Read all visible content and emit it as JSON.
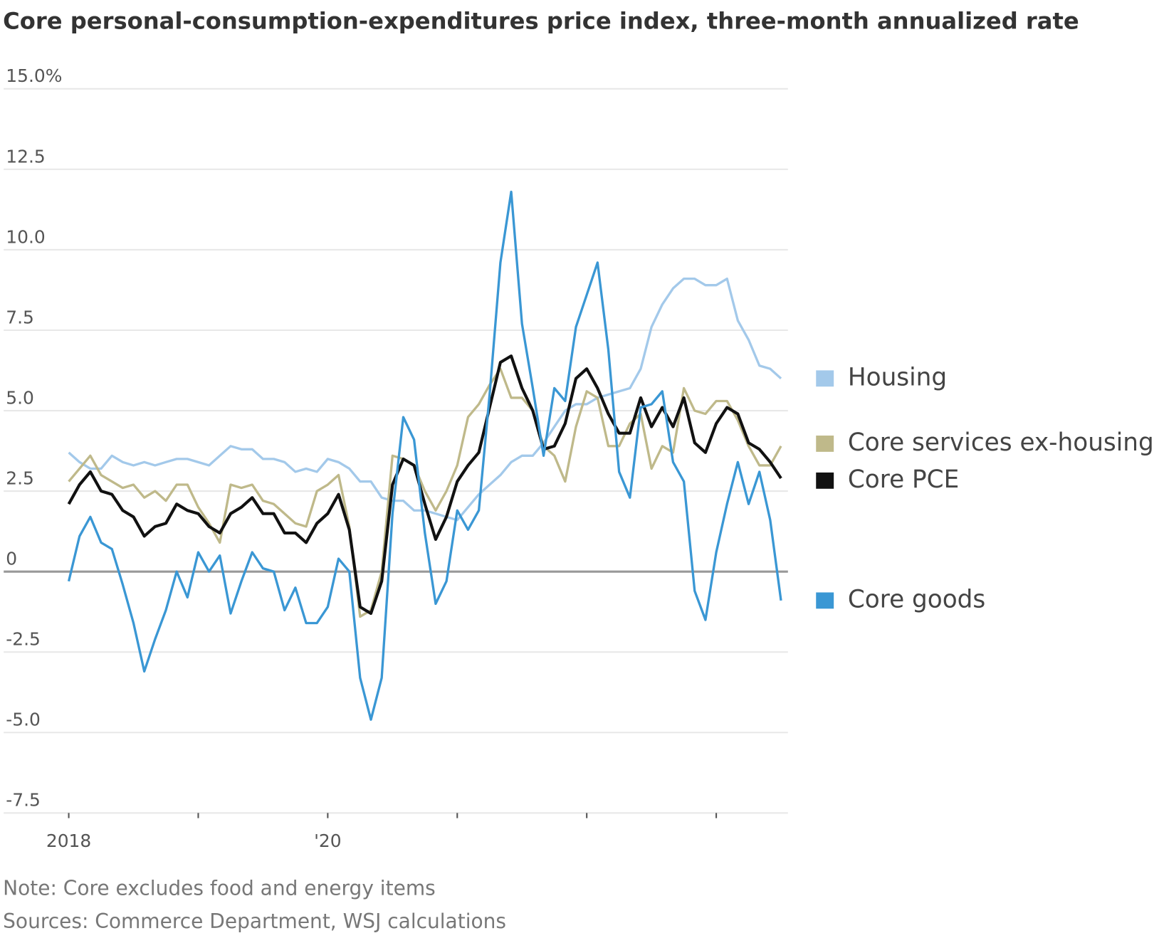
{
  "chart_data": {
    "type": "line",
    "title": "Core personal-consumption-expenditures price index, three-month annualized rate",
    "note": "Note: Core excludes food and energy items",
    "source": "Sources: Commerce Department, WSJ calculations",
    "categories": [
      "2018",
      null,
      null,
      null,
      null,
      null,
      null,
      null,
      null,
      null,
      null,
      null,
      null,
      null,
      null,
      null,
      null,
      null,
      null,
      null,
      null,
      null,
      null,
      null,
      "'20",
      null,
      null,
      null,
      null,
      null,
      null,
      null,
      null,
      null,
      null,
      null,
      null,
      null,
      null,
      null,
      null,
      null,
      null,
      null,
      null,
      null,
      null,
      null,
      null,
      null,
      null,
      null,
      null,
      null,
      null,
      null,
      null,
      null,
      null,
      null,
      null,
      null,
      null,
      null,
      null,
      null,
      null
    ],
    "ylim": [
      -7.5,
      15
    ],
    "yticks": [
      {
        "value": 15,
        "label": "15.0%"
      },
      12.5,
      {
        "value": 10,
        "label": "10.0"
      },
      7.5,
      {
        "value": 5,
        "label": "5.0"
      },
      2.5,
      0,
      -2.5,
      {
        "value": -5,
        "label": "-5.0"
      },
      -7.5
    ],
    "grid": true,
    "legend": "right",
    "series": [
      {
        "name": "Housing",
        "color": "#a3c9ea",
        "values": [
          3.7,
          3.4,
          3.2,
          3.2,
          3.6,
          3.4,
          3.3,
          3.4,
          3.3,
          3.4,
          3.5,
          3.5,
          3.4,
          3.3,
          3.6,
          3.9,
          3.8,
          3.8,
          3.5,
          3.5,
          3.4,
          3.1,
          3.2,
          3.1,
          3.5,
          3.4,
          3.2,
          2.8,
          2.8,
          2.3,
          2.2,
          2.2,
          1.9,
          1.9,
          1.8,
          1.7,
          1.6,
          2.0,
          2.4,
          2.7,
          3.0,
          3.4,
          3.6,
          3.6,
          4.0,
          4.5,
          5.0,
          5.2,
          5.2,
          5.4,
          5.5,
          5.6,
          5.7,
          6.3,
          7.6,
          8.3,
          8.8,
          9.1,
          9.1,
          8.9,
          8.9,
          9.1,
          7.8,
          7.2,
          6.4,
          6.3,
          6.0
        ]
      },
      {
        "name": "Core services ex-housing",
        "color": "#bfb98a",
        "values": [
          2.8,
          3.2,
          3.6,
          3.0,
          2.8,
          2.6,
          2.7,
          2.3,
          2.5,
          2.2,
          2.7,
          2.7,
          2.0,
          1.5,
          0.9,
          2.7,
          2.6,
          2.7,
          2.2,
          2.1,
          1.8,
          1.5,
          1.4,
          2.5,
          2.7,
          3.0,
          1.4,
          -1.4,
          -1.2,
          0.0,
          3.6,
          3.5,
          3.3,
          2.5,
          1.9,
          2.5,
          3.3,
          4.8,
          5.2,
          5.8,
          6.3,
          5.4,
          5.4,
          5.0,
          3.9,
          3.6,
          2.8,
          4.5,
          5.6,
          5.4,
          3.9,
          3.9,
          4.6,
          4.9,
          3.2,
          3.9,
          3.7,
          5.7,
          5.0,
          4.9,
          5.3,
          5.3,
          4.7,
          3.9,
          3.3,
          3.3,
          3.9
        ]
      },
      {
        "name": "Core PCE",
        "color": "#111111",
        "values": [
          2.1,
          2.7,
          3.1,
          2.5,
          2.4,
          1.9,
          1.7,
          1.1,
          1.4,
          1.5,
          2.1,
          1.9,
          1.8,
          1.4,
          1.2,
          1.8,
          2.0,
          2.3,
          1.8,
          1.8,
          1.2,
          1.2,
          0.9,
          1.5,
          1.8,
          2.4,
          1.3,
          -1.1,
          -1.3,
          -0.3,
          2.7,
          3.5,
          3.3,
          2.1,
          1.0,
          1.7,
          2.8,
          3.3,
          3.7,
          5.1,
          6.5,
          6.7,
          5.7,
          5.0,
          3.8,
          3.9,
          4.6,
          6.0,
          6.3,
          5.7,
          4.9,
          4.3,
          4.3,
          5.4,
          4.5,
          5.1,
          4.5,
          5.4,
          4.0,
          3.7,
          4.6,
          5.1,
          4.9,
          4.0,
          3.8,
          3.4,
          2.9
        ]
      },
      {
        "name": "Core goods",
        "color": "#3a97d4",
        "values": [
          -0.3,
          1.1,
          1.7,
          0.9,
          0.7,
          -0.4,
          -1.6,
          -3.1,
          -2.1,
          -1.2,
          0.0,
          -0.8,
          0.6,
          0.0,
          0.5,
          -1.3,
          -0.3,
          0.6,
          0.1,
          0.0,
          -1.2,
          -0.5,
          -1.6,
          -1.6,
          -1.1,
          0.4,
          0.0,
          -3.3,
          -4.6,
          -3.3,
          1.8,
          4.8,
          4.1,
          1.2,
          -1.0,
          -0.3,
          1.9,
          1.3,
          1.9,
          5.5,
          9.6,
          11.8,
          7.7,
          5.7,
          3.6,
          5.7,
          5.3,
          7.6,
          8.6,
          9.6,
          6.9,
          3.1,
          2.3,
          5.1,
          5.2,
          5.6,
          3.4,
          2.8,
          -0.6,
          -1.5,
          0.6,
          2.1,
          3.4,
          2.1,
          3.1,
          1.6,
          -0.9
        ]
      }
    ]
  }
}
